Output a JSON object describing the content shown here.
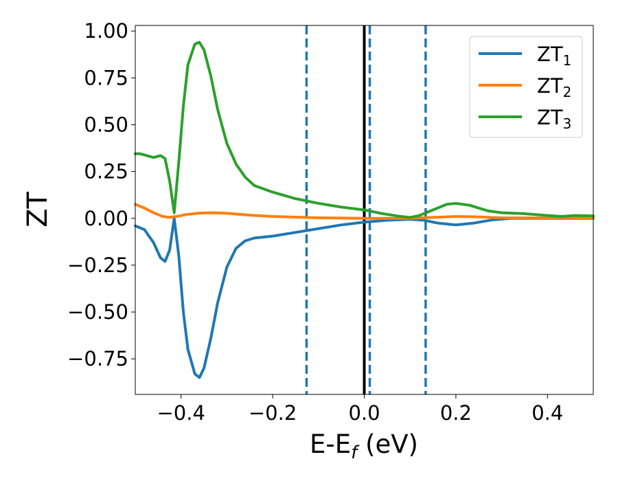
{
  "chart_data": {
    "type": "line",
    "xlabel": "E-E",
    "xlabel_subscript": "f",
    "xlabel_unit": " (eV)",
    "ylabel": "ZT",
    "xlim": [
      -0.5,
      0.5
    ],
    "ylim": [
      -0.94,
      1.03
    ],
    "xticks": [
      {
        "value": -0.4,
        "label": "−0.4"
      },
      {
        "value": -0.2,
        "label": "−0.2"
      },
      {
        "value": 0.0,
        "label": "0.0"
      },
      {
        "value": 0.2,
        "label": "0.2"
      },
      {
        "value": 0.4,
        "label": "0.4"
      }
    ],
    "yticks": [
      {
        "value": 1.0,
        "label": "1.00"
      },
      {
        "value": 0.75,
        "label": "0.75"
      },
      {
        "value": 0.5,
        "label": "0.50"
      },
      {
        "value": 0.25,
        "label": "0.25"
      },
      {
        "value": 0.0,
        "label": "0.00"
      },
      {
        "value": -0.25,
        "label": "−0.25"
      },
      {
        "value": -0.5,
        "label": "−0.50"
      },
      {
        "value": -0.75,
        "label": "−0.75"
      }
    ],
    "grid": false,
    "legend_position": "top-right",
    "vertical_lines": [
      {
        "x": 0.0,
        "style": "solid",
        "color": "#000000"
      },
      {
        "x": -0.126,
        "style": "dashed",
        "color": "#1f77b4"
      },
      {
        "x": 0.012,
        "style": "dashed",
        "color": "#1f77b4"
      },
      {
        "x": 0.134,
        "style": "dashed",
        "color": "#1f77b4"
      }
    ],
    "series": [
      {
        "name": "ZT",
        "subscript": "1",
        "color": "#1f77b4",
        "points": [
          [
            -0.5,
            -0.04
          ],
          [
            -0.48,
            -0.06
          ],
          [
            -0.46,
            -0.13
          ],
          [
            -0.445,
            -0.21
          ],
          [
            -0.435,
            -0.23
          ],
          [
            -0.425,
            -0.17
          ],
          [
            -0.415,
            0.0
          ],
          [
            -0.405,
            -0.2
          ],
          [
            -0.395,
            -0.5
          ],
          [
            -0.385,
            -0.7
          ],
          [
            -0.37,
            -0.83
          ],
          [
            -0.36,
            -0.85
          ],
          [
            -0.35,
            -0.8
          ],
          [
            -0.335,
            -0.64
          ],
          [
            -0.32,
            -0.45
          ],
          [
            -0.3,
            -0.26
          ],
          [
            -0.28,
            -0.16
          ],
          [
            -0.26,
            -0.12
          ],
          [
            -0.24,
            -0.105
          ],
          [
            -0.2,
            -0.095
          ],
          [
            -0.15,
            -0.075
          ],
          [
            -0.1,
            -0.055
          ],
          [
            -0.05,
            -0.035
          ],
          [
            0.0,
            -0.02
          ],
          [
            0.05,
            -0.01
          ],
          [
            0.1,
            -0.005
          ],
          [
            0.13,
            -0.01
          ],
          [
            0.16,
            -0.025
          ],
          [
            0.2,
            -0.035
          ],
          [
            0.24,
            -0.025
          ],
          [
            0.28,
            -0.008
          ],
          [
            0.32,
            0.0
          ],
          [
            0.4,
            0.0
          ],
          [
            0.5,
            0.0
          ]
        ]
      },
      {
        "name": "ZT",
        "subscript": "2",
        "color": "#ff7f0e",
        "points": [
          [
            -0.5,
            0.075
          ],
          [
            -0.48,
            0.055
          ],
          [
            -0.46,
            0.03
          ],
          [
            -0.44,
            0.01
          ],
          [
            -0.425,
            0.005
          ],
          [
            -0.41,
            0.01
          ],
          [
            -0.39,
            0.02
          ],
          [
            -0.36,
            0.028
          ],
          [
            -0.33,
            0.03
          ],
          [
            -0.3,
            0.027
          ],
          [
            -0.25,
            0.017
          ],
          [
            -0.2,
            0.01
          ],
          [
            -0.1,
            0.003
          ],
          [
            0.0,
            0.0
          ],
          [
            0.1,
            0.0
          ],
          [
            0.2,
            0.01
          ],
          [
            0.25,
            0.008
          ],
          [
            0.3,
            0.003
          ],
          [
            0.4,
            0.002
          ],
          [
            0.5,
            0.003
          ]
        ]
      },
      {
        "name": "ZT",
        "subscript": "3",
        "color": "#2ca02c",
        "points": [
          [
            -0.5,
            0.345
          ],
          [
            -0.49,
            0.345
          ],
          [
            -0.475,
            0.335
          ],
          [
            -0.46,
            0.325
          ],
          [
            -0.445,
            0.335
          ],
          [
            -0.435,
            0.32
          ],
          [
            -0.425,
            0.2
          ],
          [
            -0.415,
            0.03
          ],
          [
            -0.405,
            0.3
          ],
          [
            -0.395,
            0.6
          ],
          [
            -0.385,
            0.82
          ],
          [
            -0.37,
            0.93
          ],
          [
            -0.36,
            0.94
          ],
          [
            -0.35,
            0.9
          ],
          [
            -0.335,
            0.76
          ],
          [
            -0.32,
            0.58
          ],
          [
            -0.3,
            0.4
          ],
          [
            -0.28,
            0.29
          ],
          [
            -0.26,
            0.22
          ],
          [
            -0.24,
            0.175
          ],
          [
            -0.2,
            0.14
          ],
          [
            -0.15,
            0.105
          ],
          [
            -0.1,
            0.08
          ],
          [
            -0.05,
            0.06
          ],
          [
            0.0,
            0.045
          ],
          [
            0.04,
            0.025
          ],
          [
            0.08,
            0.01
          ],
          [
            0.1,
            0.005
          ],
          [
            0.12,
            0.015
          ],
          [
            0.15,
            0.045
          ],
          [
            0.18,
            0.075
          ],
          [
            0.2,
            0.08
          ],
          [
            0.23,
            0.07
          ],
          [
            0.27,
            0.04
          ],
          [
            0.3,
            0.03
          ],
          [
            0.35,
            0.025
          ],
          [
            0.4,
            0.015
          ],
          [
            0.43,
            0.01
          ],
          [
            0.46,
            0.015
          ],
          [
            0.5,
            0.013
          ]
        ]
      }
    ]
  }
}
